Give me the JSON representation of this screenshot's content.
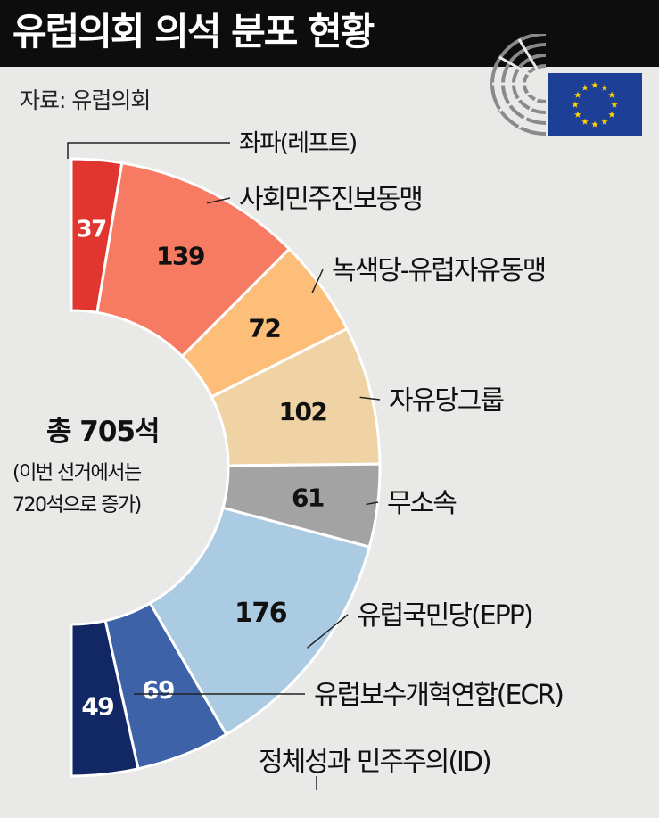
{
  "title": "유럽의회 의석 분포 현황",
  "source": "자료: 유럽의회",
  "center": {
    "total": "총 705석",
    "note_line1": "(이번 선거에서는",
    "note_line2": "720석으로 증가)"
  },
  "colors": {
    "background": "#e9e9e8",
    "header": "#0d0d0d",
    "eu_flag_blue": "#1d3f95",
    "eu_flag_star": "#ffd500"
  },
  "icons": [
    "eu-flag-icon",
    "parliament-hemicycle-icon"
  ],
  "chart_data": {
    "type": "pie",
    "variant": "half-donut",
    "total": 705,
    "series": [
      {
        "name": "좌파(레프트)",
        "value": 37,
        "color": "#e0362f"
      },
      {
        "name": "사회민주진보동맹",
        "value": 139,
        "color": "#f67b62"
      },
      {
        "name": "녹색당-유럽자유동맹",
        "value": 72,
        "color": "#fdbe7a"
      },
      {
        "name": "자유당그룹",
        "value": 102,
        "color": "#f0d3a5"
      },
      {
        "name": "무소속",
        "value": 61,
        "color": "#a3a3a3"
      },
      {
        "name": "유럽국민당(EPP)",
        "value": 176,
        "color": "#abcbe2"
      },
      {
        "name": "유럽보수개혁연합(ECR)",
        "value": 69,
        "color": "#3d62a8"
      },
      {
        "name": "정체성과 민주주의(ID)",
        "value": 49,
        "color": "#112865"
      }
    ]
  }
}
